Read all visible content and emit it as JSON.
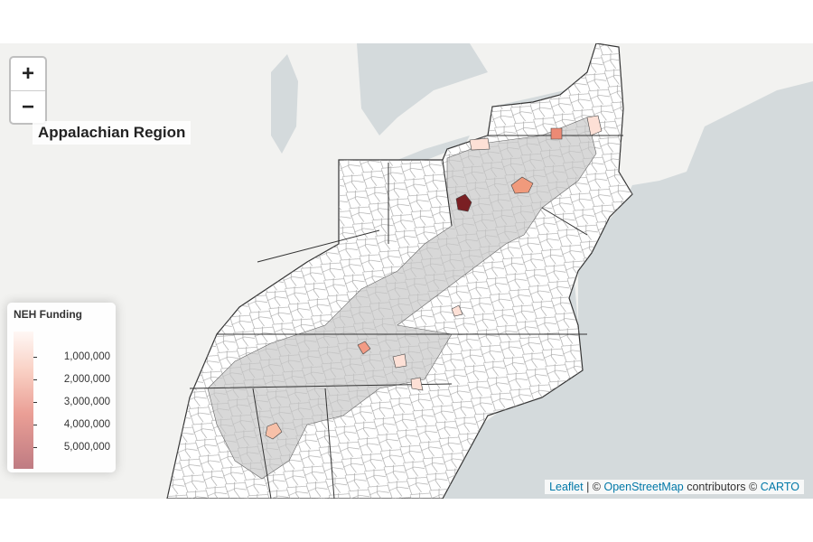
{
  "map": {
    "zoom_in": "+",
    "zoom_out": "−",
    "title": "Appalachian Region",
    "legend": {
      "title": "NEH Funding",
      "labels": [
        "1,000,000",
        "2,000,000",
        "3,000,000",
        "4,000,000",
        "5,000,000"
      ]
    },
    "attribution": {
      "leaflet": "Leaflet",
      "sep1": " | © ",
      "osm": "OpenStreetMap",
      "sep2": " contributors © ",
      "carto": "CARTO"
    }
  }
}
